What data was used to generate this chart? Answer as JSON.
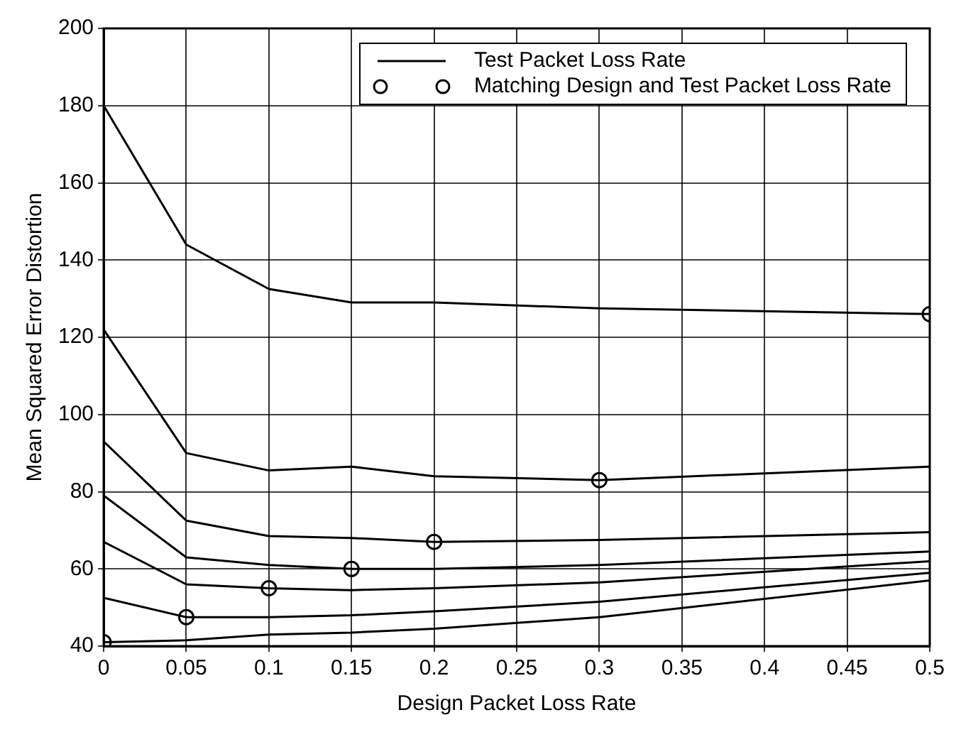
{
  "chart_data": {
    "type": "line",
    "xlabel": "Design Packet Loss Rate",
    "ylabel": "Mean Squared Error Distortion",
    "x": [
      0,
      0.05,
      0.1,
      0.15,
      0.2,
      0.3,
      0.5
    ],
    "xlim": [
      0,
      0.5
    ],
    "xticks": [
      0,
      0.05,
      0.1,
      0.15,
      0.2,
      0.25,
      0.3,
      0.35,
      0.4,
      0.45,
      0.5
    ],
    "ylim": [
      40,
      200
    ],
    "yticks": [
      40,
      60,
      80,
      100,
      120,
      140,
      160,
      180,
      200
    ],
    "grid": true,
    "legend": "top right",
    "marker": "none",
    "series": [
      {
        "name": "Test Packet Loss Rate",
        "color": "#000000",
        "values": [
          180,
          144,
          132.5,
          129,
          129,
          127.5,
          126
        ]
      },
      {
        "color": "#000000",
        "values": [
          122,
          90,
          85.5,
          86.5,
          84,
          83,
          86.5
        ]
      },
      {
        "color": "#000000",
        "values": [
          93,
          72.5,
          68.5,
          68,
          67,
          67.5,
          69.5
        ]
      },
      {
        "color": "#000000",
        "values": [
          79,
          63,
          61,
          60,
          60,
          61,
          64.5
        ]
      },
      {
        "color": "#000000",
        "values": [
          67,
          56,
          55,
          54.5,
          55,
          56.5,
          62
        ]
      },
      {
        "color": "#000000",
        "values": [
          52.5,
          47.5,
          47.5,
          48,
          49,
          51.5,
          59
        ]
      },
      {
        "color": "#000000",
        "values": [
          41,
          41.5,
          43,
          43.5,
          44.5,
          47.5,
          57
        ]
      },
      {
        "name": "Matching Design and Test Packet Loss Rate",
        "type": "scatter",
        "marker": "circle",
        "color": "#000000",
        "x": [
          0,
          0.05,
          0.1,
          0.15,
          0.2,
          0.3,
          0.5
        ],
        "values": [
          41,
          47.5,
          55,
          60,
          67,
          83,
          126
        ]
      }
    ]
  }
}
